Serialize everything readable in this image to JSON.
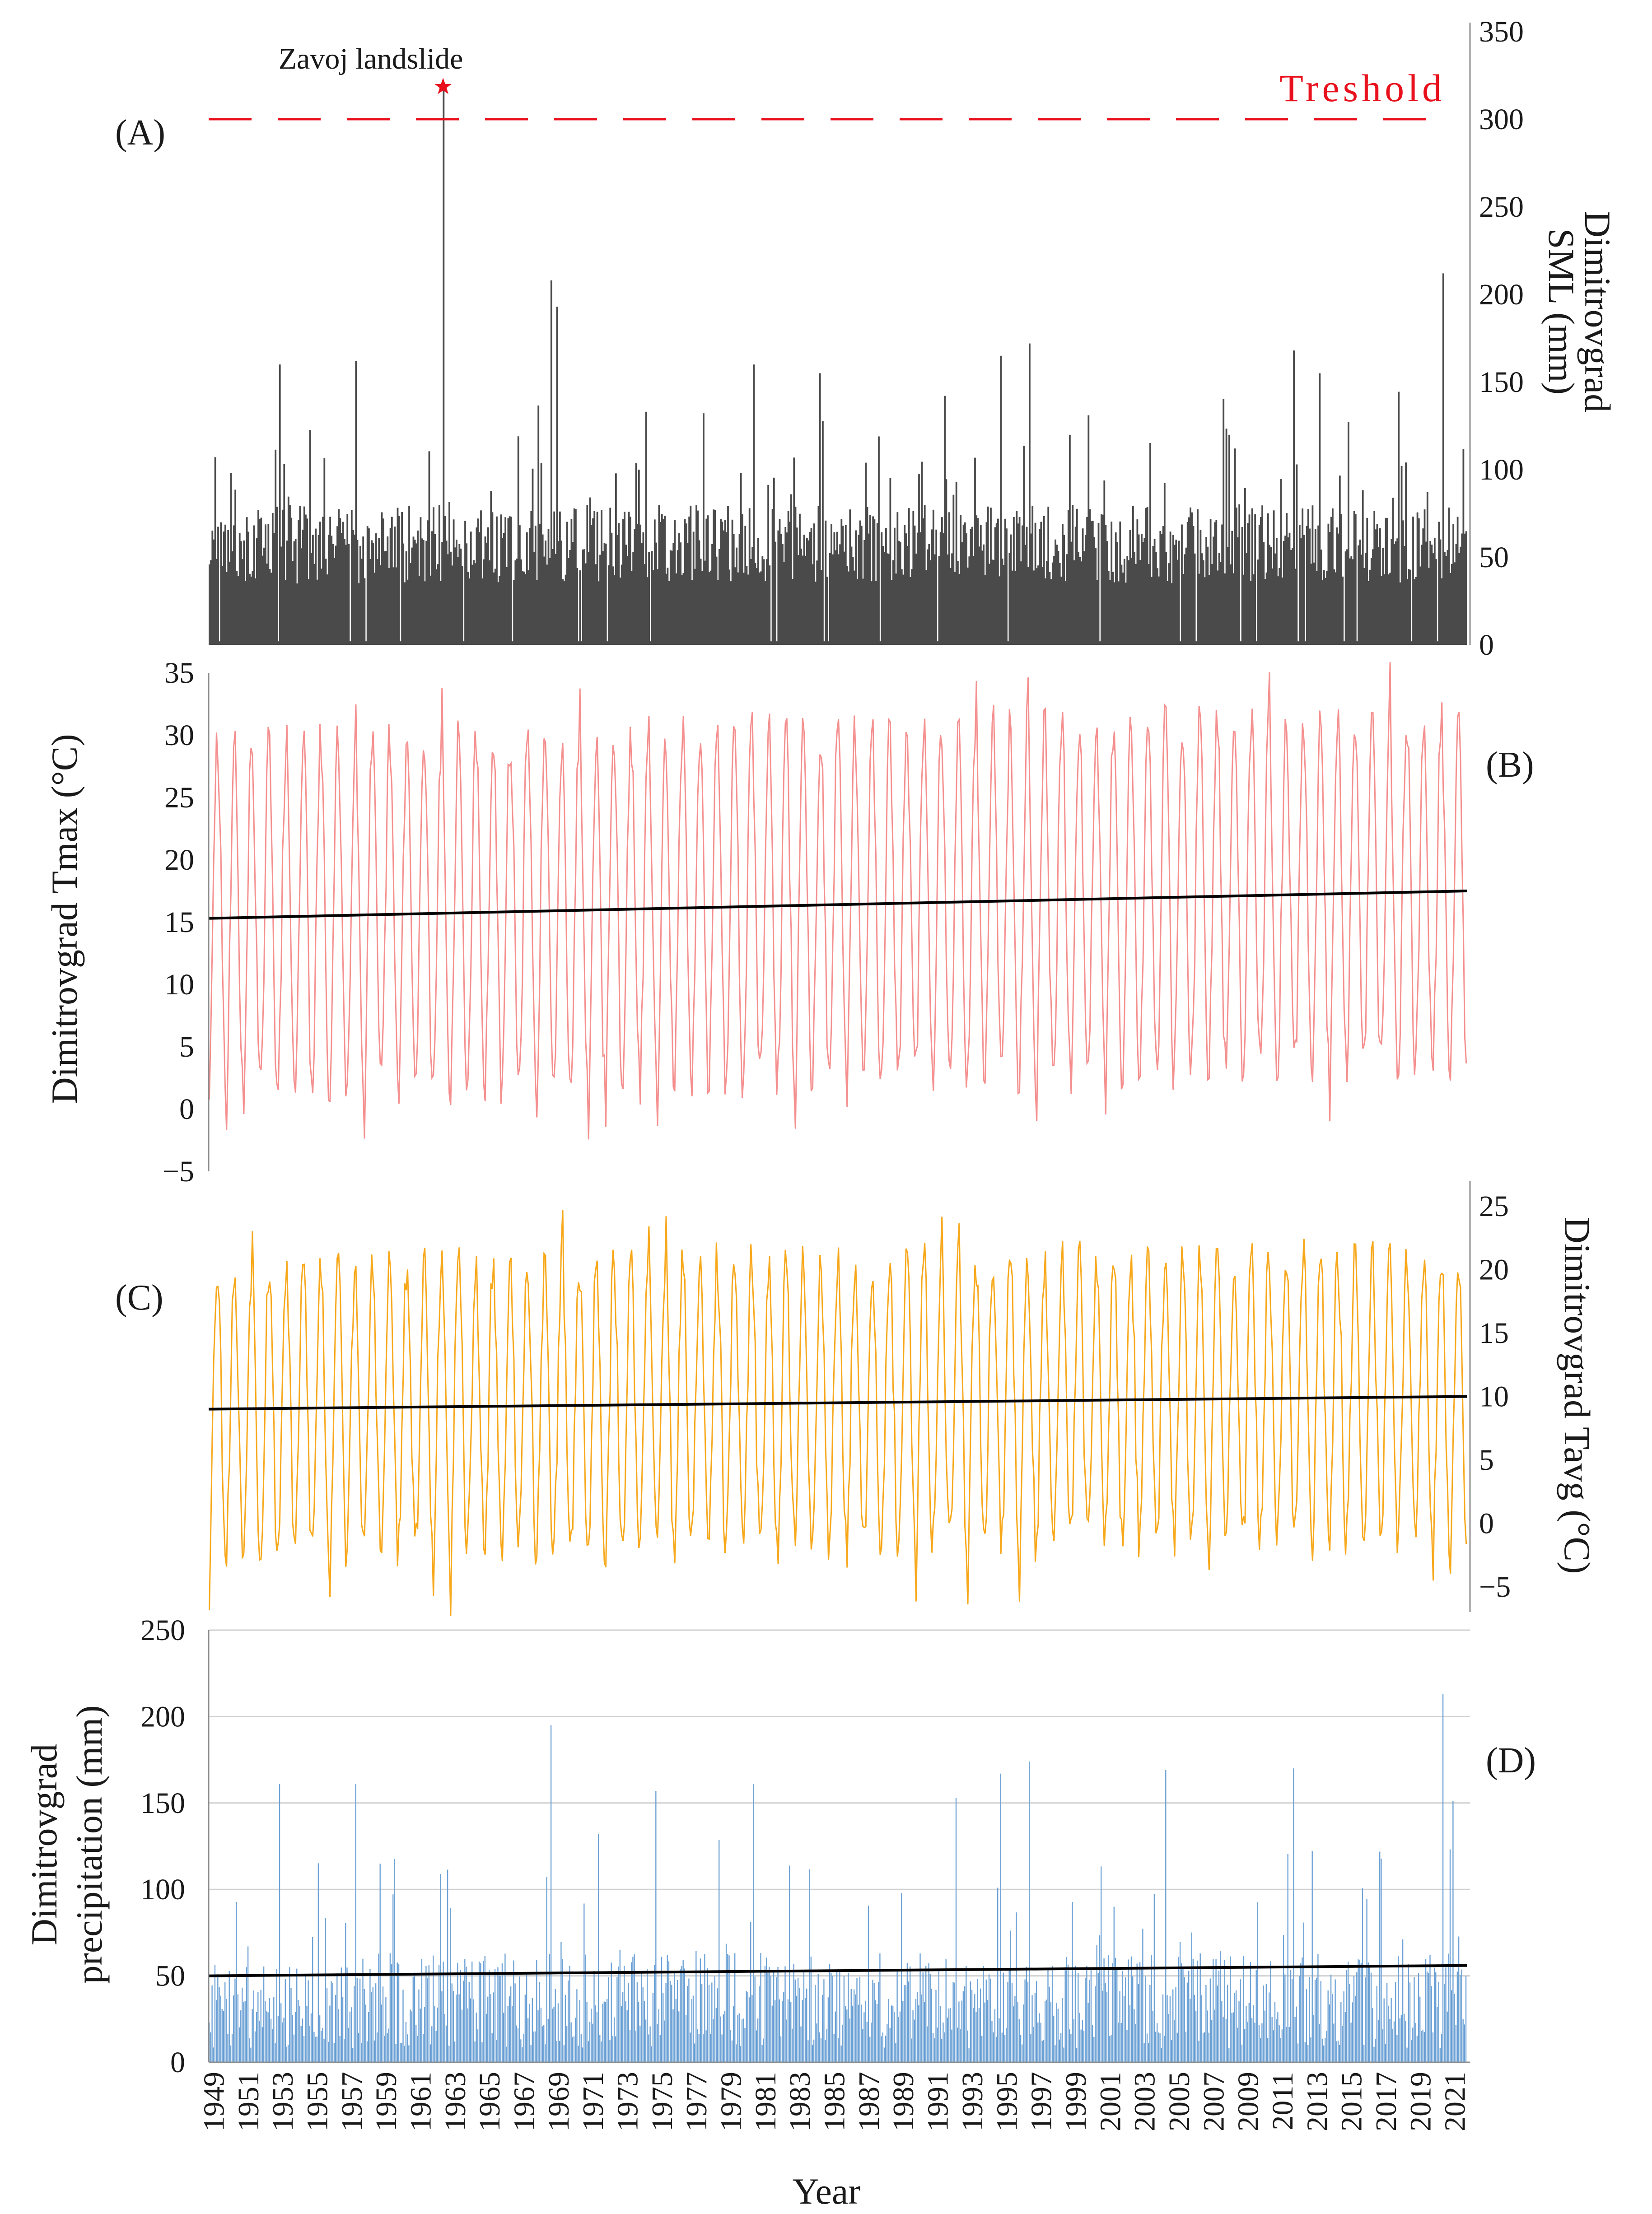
{
  "colors": {
    "sml": "#4a4a4a",
    "tmax": "#f4908f",
    "tavg": "#f7a81b",
    "precip": "#6fa3d6",
    "trend": "#000000",
    "threshold": "#e8101c",
    "grid": "#d0d0d0",
    "axis": "#8c8c8c"
  },
  "xaxis": {
    "title": "Year",
    "start_year": 1949,
    "end_year": 2021,
    "tick_labels": [
      "1949",
      "1951",
      "1953",
      "1955",
      "1957",
      "1959",
      "1961",
      "1963",
      "1965",
      "1967",
      "1969",
      "1971",
      "1973",
      "1975",
      "1977",
      "1979",
      "1981",
      "1983",
      "1985",
      "1987",
      "1989",
      "1991",
      "1993",
      "1995",
      "1997",
      "1999",
      "2001",
      "2003",
      "2005",
      "2007",
      "2009",
      "2011",
      "2013",
      "2015",
      "2017",
      "2019",
      "2021"
    ]
  },
  "chart_data": [
    {
      "id": "A",
      "panel_label": "(A)",
      "type": "bar",
      "series_name": "Dimitrovgrad SML",
      "ylabel_lines": [
        "Dimitrovgrad",
        "SML (mm)"
      ],
      "ylim": [
        0,
        350
      ],
      "yticks": [
        0,
        50,
        100,
        150,
        200,
        250,
        300,
        350
      ],
      "ytick_labels": [
        "0",
        "50",
        "100",
        "150",
        "200",
        "250",
        "300",
        "350"
      ],
      "x_range_years": [
        1949,
        2021
      ],
      "resolution": "monthly (approx.)",
      "threshold": {
        "value": 300,
        "label": "Treshold"
      },
      "event": {
        "label": "Zavoj landslide",
        "year": 1962.6,
        "value": 318
      },
      "peaks": [
        {
          "year": 1962.6,
          "value": 318
        },
        {
          "year": 1968.8,
          "value": 208
        },
        {
          "year": 1969.2,
          "value": 193
        },
        {
          "year": 2020.6,
          "value": 212
        },
        {
          "year": 1996.6,
          "value": 172
        },
        {
          "year": 2011.9,
          "value": 168
        },
        {
          "year": 1994.9,
          "value": 165
        },
        {
          "year": 1953.1,
          "value": 160
        },
        {
          "year": 1957.5,
          "value": 162
        },
        {
          "year": 1980.6,
          "value": 160
        },
        {
          "year": 1984.4,
          "value": 155
        },
        {
          "year": 2013.4,
          "value": 155
        }
      ],
      "typical_range": [
        20,
        100
      ]
    },
    {
      "id": "B",
      "panel_label": "(B)",
      "type": "line",
      "series_name": "Dimitrovgrad Tmax",
      "ylabel_lines": [
        "Dimitrovgrad Tmax (°C)"
      ],
      "ylim": [
        -5,
        35
      ],
      "yticks": [
        -5,
        0,
        5,
        10,
        15,
        20,
        25,
        30,
        35
      ],
      "ytick_labels": [
        "−5",
        "0",
        "5",
        "10",
        "15",
        "20",
        "25",
        "30",
        "35"
      ],
      "x_range_years": [
        1949,
        2021
      ],
      "resolution": "monthly",
      "seasonal_summer_peak_range": [
        26,
        33
      ],
      "seasonal_winter_trough_range": [
        -3,
        6
      ],
      "trend": {
        "start": [
          1949,
          15.3
        ],
        "end": [
          2021,
          17.5
        ]
      }
    },
    {
      "id": "C",
      "panel_label": "(C)",
      "type": "line",
      "series_name": "Dimitrovgrad Tavg",
      "ylabel_lines": [
        "Dimitrovgrad Tavg (°C)"
      ],
      "ylim": [
        -7,
        27
      ],
      "yticks": [
        -5,
        0,
        5,
        10,
        15,
        20,
        25
      ],
      "ytick_labels": [
        "−5",
        "0",
        "5",
        "10",
        "15",
        "20",
        "25"
      ],
      "x_range_years": [
        1949,
        2021
      ],
      "resolution": "monthly",
      "seasonal_summer_peak_range": [
        18,
        23
      ],
      "seasonal_winter_trough_range": [
        -6,
        2
      ],
      "trend": {
        "start": [
          1949,
          9.0
        ],
        "end": [
          2021,
          10.0
        ]
      }
    },
    {
      "id": "D",
      "panel_label": "(D)",
      "type": "bar",
      "series_name": "Dimitrovgrad precipitation",
      "ylabel_lines": [
        "Dimitrovgrad",
        "precipitation (mm)"
      ],
      "ylim": [
        0,
        250
      ],
      "yticks": [
        0,
        50,
        100,
        150,
        200,
        250
      ],
      "ytick_labels": [
        "0",
        "50",
        "100",
        "150",
        "200",
        "250"
      ],
      "grid": true,
      "x_range_years": [
        1949,
        2021
      ],
      "resolution": "monthly",
      "peaks": [
        {
          "year": 1968.8,
          "value": 195
        },
        {
          "year": 2020.6,
          "value": 213
        },
        {
          "year": 1996.6,
          "value": 174
        },
        {
          "year": 2011.9,
          "value": 170
        },
        {
          "year": 2004.5,
          "value": 169
        },
        {
          "year": 1994.9,
          "value": 167
        },
        {
          "year": 1953.1,
          "value": 161
        },
        {
          "year": 1957.5,
          "value": 161
        },
        {
          "year": 1974.9,
          "value": 157
        },
        {
          "year": 1980.6,
          "value": 161
        },
        {
          "year": 1992.3,
          "value": 153
        },
        {
          "year": 2021.2,
          "value": 151
        }
      ],
      "typical_range": [
        10,
        90
      ],
      "trend": {
        "start": [
          1949,
          50
        ],
        "end": [
          2021,
          56
        ]
      }
    }
  ]
}
